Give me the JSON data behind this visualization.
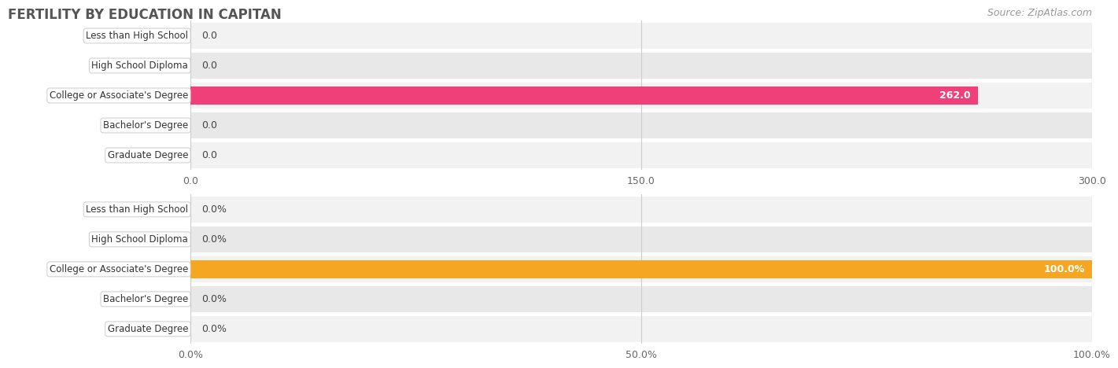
{
  "title": "FERTILITY BY EDUCATION IN CAPITAN",
  "source": "Source: ZipAtlas.com",
  "top_chart": {
    "categories": [
      "Less than High School",
      "High School Diploma",
      "College or Associate's Degree",
      "Bachelor's Degree",
      "Graduate Degree"
    ],
    "values": [
      0.0,
      0.0,
      262.0,
      0.0,
      0.0
    ],
    "bar_color_active": "#F0407A",
    "bar_color_inactive": "#F4AABB",
    "xlim": [
      0,
      300
    ],
    "xticks": [
      0.0,
      150.0,
      300.0
    ],
    "fmt_pct": false
  },
  "bottom_chart": {
    "categories": [
      "Less than High School",
      "High School Diploma",
      "College or Associate's Degree",
      "Bachelor's Degree",
      "Graduate Degree"
    ],
    "values": [
      0.0,
      0.0,
      100.0,
      0.0,
      0.0
    ],
    "bar_color_active": "#F5A623",
    "bar_color_inactive": "#F9D4A0",
    "xlim": [
      0,
      100
    ],
    "xticks": [
      0.0,
      50.0,
      100.0
    ],
    "fmt_pct": true
  },
  "bg_color": "#FFFFFF",
  "title_color": "#555555",
  "source_color": "#999999",
  "row_colors": [
    "#F2F2F2",
    "#E8E8E8"
  ],
  "grid_color": "#CCCCCC",
  "label_fontsize": 8.5,
  "value_fontsize": 9,
  "title_fontsize": 12
}
